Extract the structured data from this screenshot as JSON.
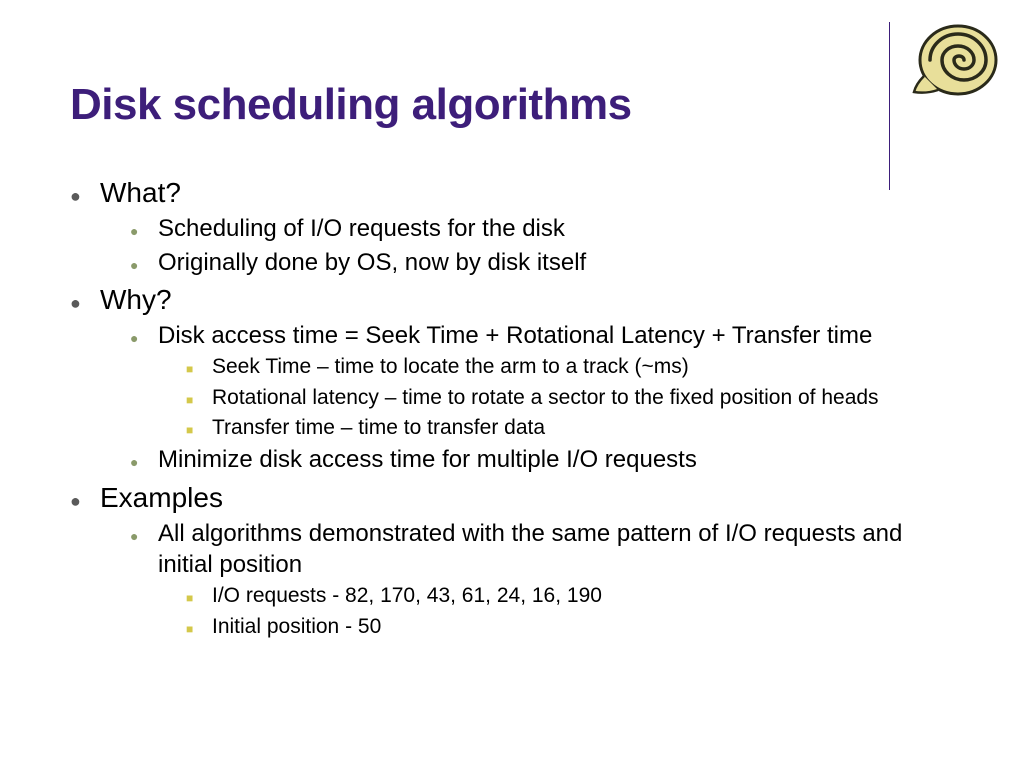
{
  "title": "Disk scheduling algorithms",
  "colors": {
    "title": "#3d1e7a",
    "divider": "#3d1e7a",
    "bullet_l1": "#5a5a5a",
    "bullet_l2": "#8a9a6a",
    "bullet_l3": "#d4c84a",
    "text": "#000000",
    "background": "#ffffff"
  },
  "items": [
    {
      "text": "What?",
      "children": [
        {
          "text": "Scheduling of I/O requests for the disk"
        },
        {
          "text": "Originally done by OS, now by disk itself"
        }
      ]
    },
    {
      "text": "Why?",
      "children": [
        {
          "text": "Disk access time = Seek Time + Rotational Latency + Transfer time",
          "children": [
            {
              "text": "Seek Time – time to locate the arm to a track (~ms)"
            },
            {
              "text": "Rotational latency – time to rotate a sector to the fixed position of heads"
            },
            {
              "text": "Transfer time – time to transfer data"
            }
          ]
        },
        {
          "text": "Minimize disk access time for multiple I/O requests"
        }
      ]
    },
    {
      "text": "Examples",
      "children": [
        {
          "text": "All algorithms demonstrated with the same pattern of I/O requests and initial position",
          "children": [
            {
              "text": "I/O requests - 82, 170, 43, 61, 24, 16, 190"
            },
            {
              "text": "Initial position - 50"
            }
          ]
        }
      ]
    }
  ]
}
